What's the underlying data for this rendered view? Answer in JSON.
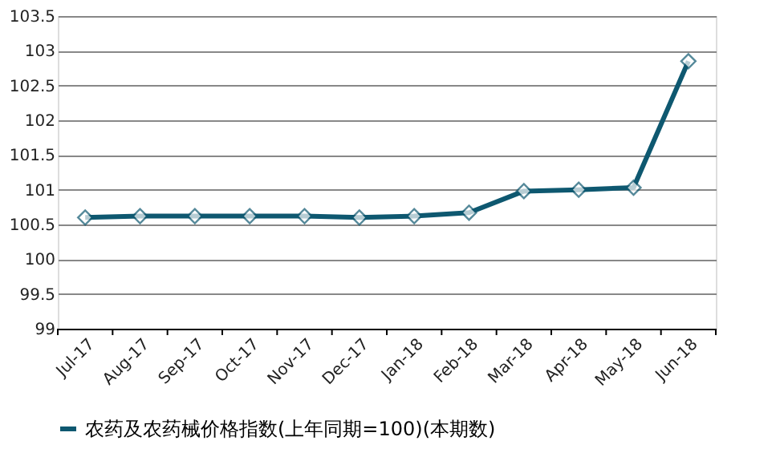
{
  "chart_data": {
    "type": "line",
    "categories": [
      "Jul-17",
      "Aug-17",
      "Sep-17",
      "Oct-17",
      "Nov-17",
      "Dec-17",
      "Jan-18",
      "Feb-18",
      "Mar-18",
      "Apr-18",
      "May-18",
      "Jun-18"
    ],
    "series": [
      {
        "name": "农药及农药械价格指数(上年同期=100)(本期数)",
        "color": "#0e5870",
        "values": [
          100.6,
          100.62,
          100.62,
          100.62,
          100.62,
          100.6,
          100.62,
          100.67,
          100.98,
          101.0,
          101.03,
          102.85
        ]
      }
    ],
    "ylim": [
      99,
      103.5
    ],
    "yticks": [
      99,
      99.5,
      100,
      100.5,
      101,
      101.5,
      102,
      102.5,
      103,
      103.5
    ],
    "grid": "y",
    "legend": "bottom",
    "marker": "diamond",
    "line_style": "solid"
  }
}
